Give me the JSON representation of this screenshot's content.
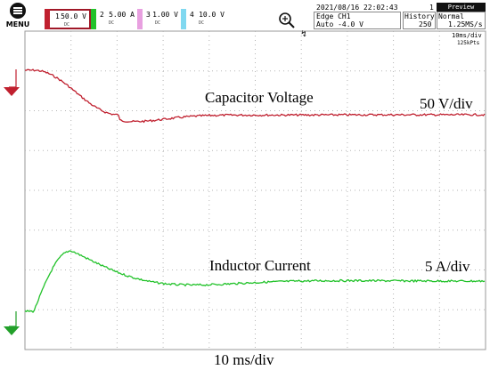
{
  "menu": {
    "label": "MENU"
  },
  "channels": [
    {
      "number": "1",
      "scale": "50.0 V",
      "color": "#c0202f"
    },
    {
      "number": "2",
      "scale": "5.00 A",
      "color": "#22c22a"
    },
    {
      "number": "3",
      "scale": "1.00 V",
      "color": "#e8a0e0"
    },
    {
      "number": "4",
      "scale": "10.0 V",
      "color": "#80d8f0"
    }
  ],
  "status": {
    "datetime": "2021/08/16 22:02:43",
    "trigger_type": "Edge CH1",
    "trigger_mode": "Auto -4.0 V",
    "acquisitions": "1",
    "history_label": "History",
    "history_value": "250",
    "acq_mode": "Normal",
    "sample_rate": "1.25MS/s",
    "preview": "Preview",
    "timebase": "10ms/div",
    "record_length": "125kPts",
    "trigger_position_glyph": "↯"
  },
  "icons": {
    "menu": "menu-icon",
    "zoom": "zoom-icon"
  },
  "traces": {
    "capacitor": {
      "label": "Capacitor Voltage",
      "scale_label": "50 V/div",
      "color": "#c0202f"
    },
    "inductor": {
      "label": "Inductor Current",
      "scale_label": "5 A/div",
      "color": "#22c22a"
    }
  },
  "x_axis_label": "10 ms/div"
}
